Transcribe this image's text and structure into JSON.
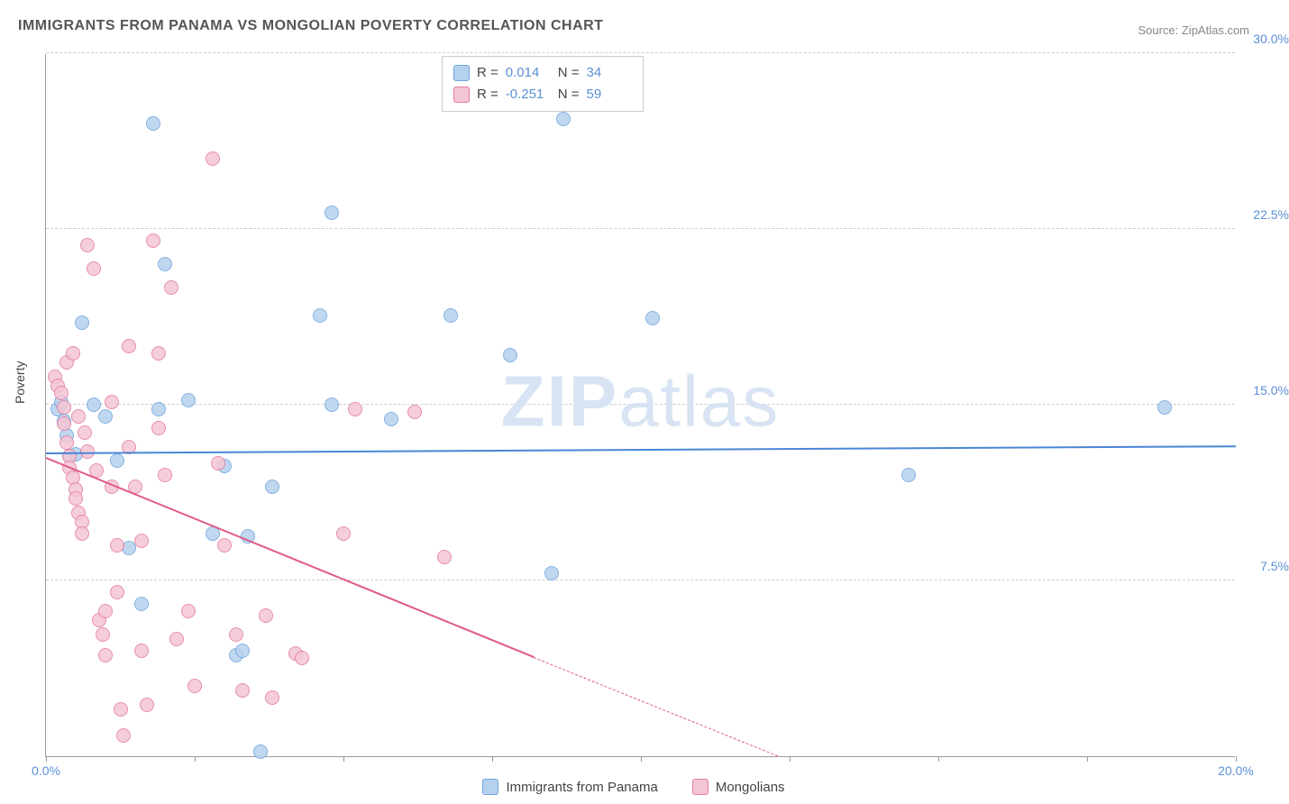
{
  "title": "IMMIGRANTS FROM PANAMA VS MONGOLIAN POVERTY CORRELATION CHART",
  "source_label": "Source: ZipAtlas.com",
  "y_axis_label": "Poverty",
  "watermark_prefix": "ZIP",
  "watermark_suffix": "atlas",
  "chart": {
    "type": "scatter",
    "xlim": [
      0,
      20
    ],
    "ylim": [
      0,
      30
    ],
    "x_ticks": [
      0,
      2.5,
      5,
      7.5,
      10,
      12.5,
      15,
      17.5,
      20
    ],
    "x_tick_labels": {
      "0": "0.0%",
      "20": "20.0%"
    },
    "y_ticks": [
      7.5,
      15,
      22.5,
      30
    ],
    "y_tick_labels": {
      "7.5": "7.5%",
      "15": "15.0%",
      "22.5": "22.5%",
      "30": "30.0%"
    },
    "grid_color": "#cccccc",
    "background_color": "#ffffff",
    "series": [
      {
        "id": "panama",
        "label": "Immigrants from Panama",
        "fill_color": "#b6d1ee",
        "stroke_color": "#6ea4de",
        "r_label": "R =",
        "r_value": "0.014",
        "n_label": "N =",
        "n_value": "34",
        "trend": {
          "x1": 0,
          "y1": 12.9,
          "x2": 20,
          "y2": 13.2,
          "color": "#4a86d4",
          "width": 2,
          "dashed": false
        },
        "points": [
          {
            "x": 0.2,
            "y": 14.8
          },
          {
            "x": 0.25,
            "y": 15.1
          },
          {
            "x": 0.3,
            "y": 14.3
          },
          {
            "x": 0.35,
            "y": 13.7
          },
          {
            "x": 0.4,
            "y": 12.8
          },
          {
            "x": 0.6,
            "y": 18.5
          },
          {
            "x": 0.8,
            "y": 15.0
          },
          {
            "x": 1.0,
            "y": 14.5
          },
          {
            "x": 1.2,
            "y": 12.6
          },
          {
            "x": 1.4,
            "y": 8.9
          },
          {
            "x": 1.6,
            "y": 6.5
          },
          {
            "x": 1.8,
            "y": 27.0
          },
          {
            "x": 2.0,
            "y": 21.0
          },
          {
            "x": 2.4,
            "y": 15.2
          },
          {
            "x": 2.8,
            "y": 9.5
          },
          {
            "x": 3.0,
            "y": 12.4
          },
          {
            "x": 3.2,
            "y": 4.3
          },
          {
            "x": 3.3,
            "y": 4.5
          },
          {
            "x": 3.4,
            "y": 9.4
          },
          {
            "x": 3.6,
            "y": 0.2
          },
          {
            "x": 3.8,
            "y": 11.5
          },
          {
            "x": 4.6,
            "y": 18.8
          },
          {
            "x": 4.8,
            "y": 23.2
          },
          {
            "x": 4.8,
            "y": 15.0
          },
          {
            "x": 5.8,
            "y": 14.4
          },
          {
            "x": 6.8,
            "y": 18.8
          },
          {
            "x": 7.8,
            "y": 17.1
          },
          {
            "x": 8.5,
            "y": 7.8
          },
          {
            "x": 8.7,
            "y": 27.2
          },
          {
            "x": 10.2,
            "y": 18.7
          },
          {
            "x": 14.5,
            "y": 12.0
          },
          {
            "x": 18.8,
            "y": 14.9
          },
          {
            "x": 0.5,
            "y": 12.9
          },
          {
            "x": 1.9,
            "y": 14.8
          }
        ]
      },
      {
        "id": "mongolians",
        "label": "Mongolians",
        "fill_color": "#f4c6d4",
        "stroke_color": "#e37ba1",
        "r_label": "R =",
        "r_value": "-0.251",
        "n_label": "N =",
        "n_value": "59",
        "trend": {
          "x1": 0,
          "y1": 12.7,
          "x2": 8.2,
          "y2": 4.2,
          "color": "#e05a88",
          "width": 2,
          "dashed_extend": {
            "x2": 12.3,
            "y2": 0
          }
        },
        "points": [
          {
            "x": 0.15,
            "y": 16.2
          },
          {
            "x": 0.2,
            "y": 15.8
          },
          {
            "x": 0.25,
            "y": 15.5
          },
          {
            "x": 0.3,
            "y": 14.9
          },
          {
            "x": 0.3,
            "y": 14.2
          },
          {
            "x": 0.35,
            "y": 13.4
          },
          {
            "x": 0.4,
            "y": 12.8
          },
          {
            "x": 0.4,
            "y": 12.3
          },
          {
            "x": 0.45,
            "y": 11.9
          },
          {
            "x": 0.5,
            "y": 11.4
          },
          {
            "x": 0.5,
            "y": 11.0
          },
          {
            "x": 0.55,
            "y": 10.4
          },
          {
            "x": 0.6,
            "y": 10.0
          },
          {
            "x": 0.6,
            "y": 9.5
          },
          {
            "x": 0.7,
            "y": 21.8
          },
          {
            "x": 0.7,
            "y": 13.0
          },
          {
            "x": 0.8,
            "y": 20.8
          },
          {
            "x": 0.85,
            "y": 12.2
          },
          {
            "x": 0.9,
            "y": 5.8
          },
          {
            "x": 0.95,
            "y": 5.2
          },
          {
            "x": 1.0,
            "y": 6.2
          },
          {
            "x": 1.0,
            "y": 4.3
          },
          {
            "x": 1.1,
            "y": 15.1
          },
          {
            "x": 1.1,
            "y": 11.5
          },
          {
            "x": 1.2,
            "y": 9.0
          },
          {
            "x": 1.2,
            "y": 7.0
          },
          {
            "x": 1.25,
            "y": 2.0
          },
          {
            "x": 1.3,
            "y": 0.9
          },
          {
            "x": 1.4,
            "y": 17.5
          },
          {
            "x": 1.4,
            "y": 13.2
          },
          {
            "x": 1.5,
            "y": 11.5
          },
          {
            "x": 1.6,
            "y": 9.2
          },
          {
            "x": 1.6,
            "y": 4.5
          },
          {
            "x": 1.7,
            "y": 2.2
          },
          {
            "x": 1.8,
            "y": 22.0
          },
          {
            "x": 1.9,
            "y": 14.0
          },
          {
            "x": 1.9,
            "y": 17.2
          },
          {
            "x": 2.0,
            "y": 12.0
          },
          {
            "x": 2.1,
            "y": 20.0
          },
          {
            "x": 2.2,
            "y": 5.0
          },
          {
            "x": 2.4,
            "y": 6.2
          },
          {
            "x": 2.5,
            "y": 3.0
          },
          {
            "x": 2.8,
            "y": 25.5
          },
          {
            "x": 2.9,
            "y": 12.5
          },
          {
            "x": 3.0,
            "y": 9.0
          },
          {
            "x": 3.2,
            "y": 5.2
          },
          {
            "x": 3.3,
            "y": 2.8
          },
          {
            "x": 3.7,
            "y": 6.0
          },
          {
            "x": 3.8,
            "y": 2.5
          },
          {
            "x": 4.2,
            "y": 4.4
          },
          {
            "x": 4.3,
            "y": 4.2
          },
          {
            "x": 5.0,
            "y": 9.5
          },
          {
            "x": 5.2,
            "y": 14.8
          },
          {
            "x": 6.2,
            "y": 14.7
          },
          {
            "x": 6.7,
            "y": 8.5
          },
          {
            "x": 0.35,
            "y": 16.8
          },
          {
            "x": 0.45,
            "y": 17.2
          },
          {
            "x": 0.55,
            "y": 14.5
          },
          {
            "x": 0.65,
            "y": 13.8
          }
        ]
      }
    ]
  }
}
